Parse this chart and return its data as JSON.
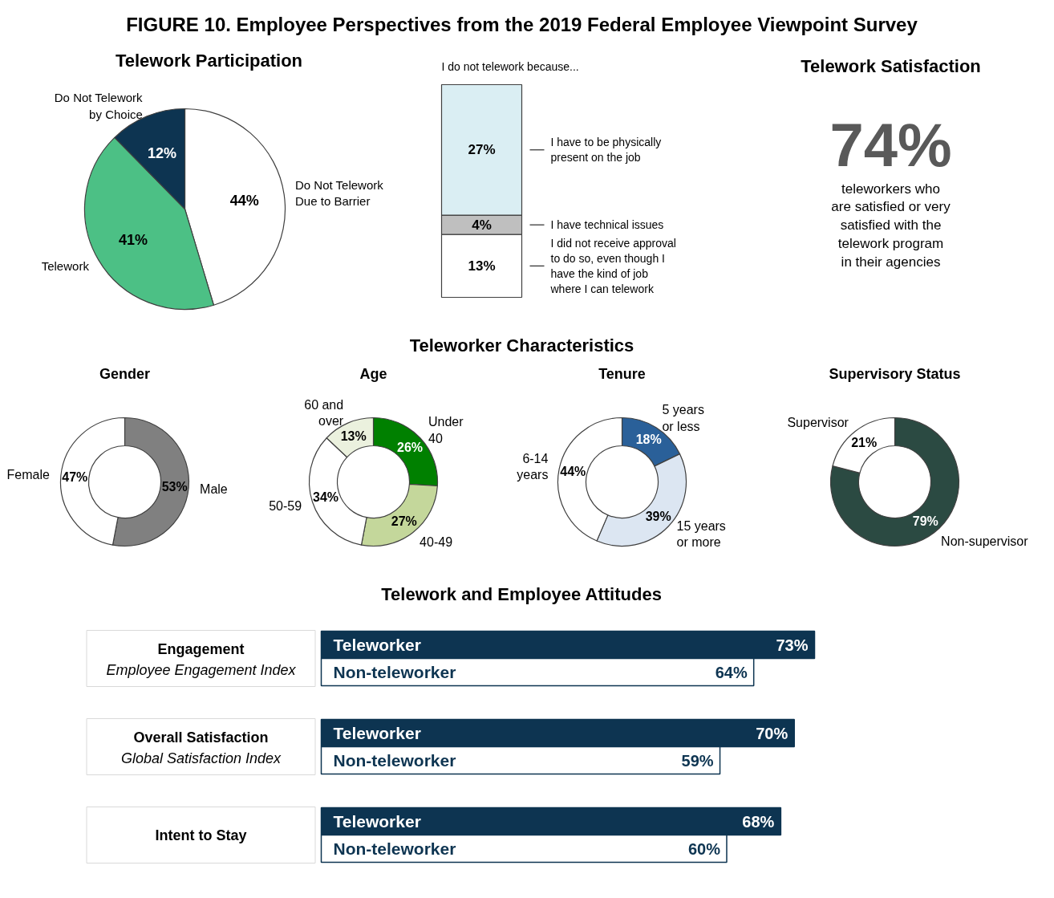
{
  "chart_data": [
    {
      "type": "other",
      "title": "FIGURE 10. Employee Perspectives from the 2019 Federal Employee Viewpoint Survey"
    },
    {
      "type": "pie",
      "title": "Telework Participation",
      "categories": [
        "Do Not Telework\nDue to Barrier",
        "Telework",
        "Do Not Telework\nby Choice"
      ],
      "values": [
        44,
        41,
        12
      ],
      "value_labels": [
        "44%",
        "41%",
        "12%"
      ],
      "colors": [
        "#ffffff",
        "#4cc085",
        "#0d3451"
      ]
    },
    {
      "type": "bar",
      "stacked": true,
      "title": "I do not telework because...",
      "categories": [
        null
      ],
      "series": [
        {
          "name": "I did not receive approval\nto do so, even though I\nhave the kind of job\nwhere I can  telework",
          "color": "#ffffff",
          "values": [
            13
          ],
          "value_labels": [
            "13%"
          ]
        },
        {
          "name": "I have technical issues",
          "color": "#bfbfbf",
          "values": [
            4
          ],
          "value_labels": [
            "4%"
          ]
        },
        {
          "name": "I have to be physically\npresent on the job",
          "color": "#daeef3",
          "values": [
            27
          ],
          "value_labels": [
            "27%"
          ]
        }
      ]
    },
    {
      "type": "other",
      "title": "Telework Satisfaction",
      "annotations": [
        "74%",
        "teleworkers who\nare satisfied or very\nsatisfied with the\ntelework program\nin their agencies"
      ]
    },
    {
      "type": "other",
      "title": "Teleworker Characteristics"
    },
    {
      "type": "donut",
      "title": "Gender",
      "categories": [
        "Male",
        "Female"
      ],
      "values": [
        53,
        47
      ],
      "value_labels": [
        "53%",
        "47%"
      ],
      "colors": [
        "#808080",
        "#ffffff"
      ]
    },
    {
      "type": "donut",
      "title": "Age",
      "categories": [
        "Under\n40",
        "40-49",
        "50-59",
        "60 and\nover"
      ],
      "values": [
        26,
        27,
        34,
        13
      ],
      "value_labels": [
        "26%",
        "27%",
        "34%",
        "13%"
      ],
      "colors": [
        "#008000",
        "#c4d79b",
        "#ffffff",
        "#ebf1de"
      ]
    },
    {
      "type": "donut",
      "title": "Tenure",
      "categories": [
        "5 years\nor less",
        "15 years\nor more",
        "6-14\nyears"
      ],
      "values": [
        18,
        39,
        44
      ],
      "value_labels": [
        "18%",
        "39%",
        "44%"
      ],
      "colors": [
        "#2a6099",
        "#dce6f2",
        "#ffffff"
      ]
    },
    {
      "type": "donut",
      "title": "Supervisory Status",
      "categories": [
        "Non-supervisor",
        "Supervisor"
      ],
      "values": [
        79,
        21
      ],
      "value_labels": [
        "79%",
        "21%"
      ],
      "colors": [
        "#2b4a42",
        "#ffffff"
      ]
    },
    {
      "type": "bar",
      "orientation": "horizontal",
      "title": "Telework and Employee Attitudes",
      "categories": [
        "Engagement\nEmployee Engagement Index",
        "Overall Satisfaction\nGlobal Satisfaction Index",
        "Intent to Stay"
      ],
      "series": [
        {
          "name": "Teleworker",
          "color": "#0d3451",
          "values": [
            73,
            70,
            68
          ],
          "value_labels": [
            "73%",
            "70%",
            "68%"
          ]
        },
        {
          "name": "Non-teleworker",
          "color": "#ffffff",
          "values": [
            64,
            59,
            60
          ],
          "value_labels": [
            "64%",
            "59%",
            "60%"
          ]
        }
      ]
    }
  ]
}
